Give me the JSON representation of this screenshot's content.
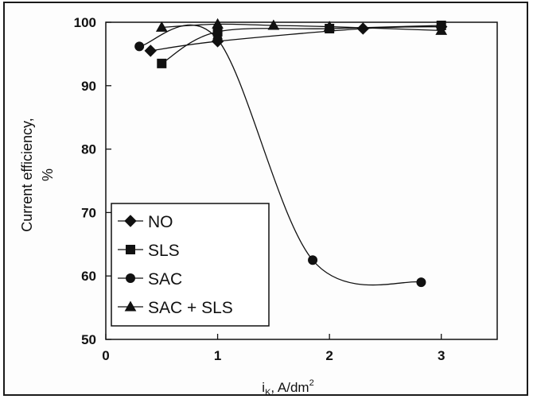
{
  "chart_data": {
    "type": "line",
    "title": "",
    "xlabel": "i_K, A/dm^2",
    "xlabel_main": "i",
    "xlabel_sub": "K",
    "xlabel_rest": ", A/dm",
    "xlabel_sup": "2",
    "ylabel_line1": "Current efficiency,",
    "ylabel_line2": "%",
    "xlim": [
      0,
      3.5
    ],
    "ylim": [
      50,
      100
    ],
    "xticks": [
      "0",
      "1",
      "2",
      "3"
    ],
    "yticks": [
      "50",
      "60",
      "70",
      "80",
      "90",
      "100"
    ],
    "grid": false,
    "legend_position": "bottom-left",
    "series": [
      {
        "name": "NO",
        "marker": "diamond",
        "x": [
          0.4,
          1.0,
          2.3,
          3.0
        ],
        "y": [
          95.5,
          97.0,
          99.0,
          99.3
        ]
      },
      {
        "name": "SLS",
        "marker": "square",
        "x": [
          0.5,
          1.0,
          2.0,
          3.0
        ],
        "y": [
          93.5,
          98.5,
          99.0,
          99.5
        ]
      },
      {
        "name": "SAC",
        "marker": "circle",
        "x": [
          0.3,
          1.0,
          1.85,
          2.82
        ],
        "y": [
          96.2,
          97.3,
          62.5,
          59.0
        ]
      },
      {
        "name": "SAC + SLS",
        "marker": "triangle",
        "x": [
          0.5,
          1.0,
          1.5,
          2.0,
          3.0
        ],
        "y": [
          99.2,
          99.7,
          99.5,
          99.3,
          98.7
        ]
      }
    ]
  }
}
